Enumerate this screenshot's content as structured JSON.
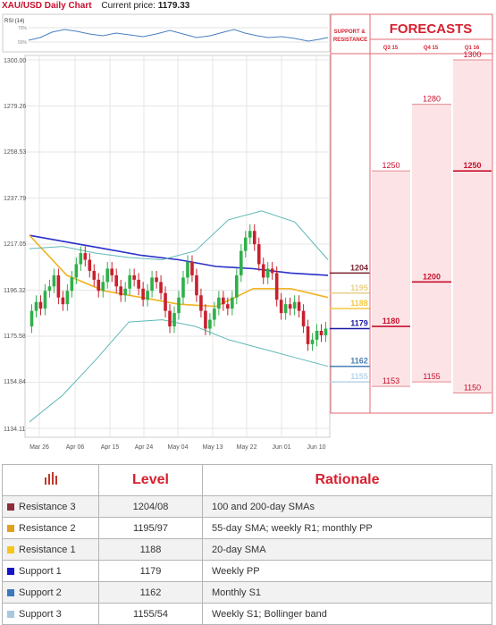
{
  "header": {
    "title": "XAU/USD Daily Chart",
    "price_label": "Current price:",
    "price": "1179.33"
  },
  "rsi": {
    "label": "RSI (14)",
    "levels": [
      "70%",
      "50%"
    ]
  },
  "chart_data": {
    "type": "candlestick",
    "title": "XAU/USD Daily Chart",
    "current_price": 1179.33,
    "y_ticks": [
      "1300.00",
      "1279.26",
      "1258.53",
      "1237.79",
      "1217.05",
      "1196.32",
      "1175.58",
      "1154.84",
      "1134.11"
    ],
    "y_range": [
      1134.11,
      1300.0
    ],
    "x_ticks": [
      "Mar 26",
      "Apr 06",
      "Apr 15",
      "Apr 24",
      "May 04",
      "May 13",
      "May 22",
      "Jun 01",
      "Jun 10"
    ],
    "grid": true,
    "candles": [
      [
        1180,
        1187
      ],
      [
        1187,
        1191
      ],
      [
        1191,
        1188
      ],
      [
        1188,
        1196
      ],
      [
        1196,
        1198
      ],
      [
        1198,
        1203
      ],
      [
        1203,
        1193
      ],
      [
        1193,
        1190
      ],
      [
        1190,
        1196
      ],
      [
        1196,
        1202
      ],
      [
        1202,
        1208
      ],
      [
        1208,
        1213
      ],
      [
        1213,
        1210
      ],
      [
        1210,
        1205
      ],
      [
        1205,
        1201
      ],
      [
        1201,
        1196
      ],
      [
        1196,
        1200
      ],
      [
        1200,
        1206
      ],
      [
        1206,
        1203
      ],
      [
        1203,
        1198
      ],
      [
        1198,
        1194
      ],
      [
        1194,
        1197
      ],
      [
        1197,
        1203
      ],
      [
        1203,
        1201
      ],
      [
        1201,
        1197
      ],
      [
        1197,
        1192
      ],
      [
        1192,
        1196
      ],
      [
        1196,
        1202
      ],
      [
        1202,
        1200
      ],
      [
        1200,
        1195
      ],
      [
        1195,
        1187
      ],
      [
        1187,
        1180
      ],
      [
        1180,
        1186
      ],
      [
        1186,
        1193
      ],
      [
        1193,
        1202
      ],
      [
        1202,
        1209
      ],
      [
        1209,
        1203
      ],
      [
        1203,
        1194
      ],
      [
        1194,
        1187
      ],
      [
        1187,
        1179
      ],
      [
        1179,
        1183
      ],
      [
        1183,
        1188
      ],
      [
        1188,
        1193
      ],
      [
        1193,
        1190
      ],
      [
        1190,
        1188
      ],
      [
        1188,
        1193
      ],
      [
        1193,
        1203
      ],
      [
        1203,
        1214
      ],
      [
        1214,
        1220
      ],
      [
        1220,
        1223
      ],
      [
        1223,
        1217
      ],
      [
        1217,
        1208
      ],
      [
        1208,
        1202
      ],
      [
        1202,
        1206
      ],
      [
        1206,
        1204
      ],
      [
        1204,
        1192
      ],
      [
        1192,
        1186
      ],
      [
        1186,
        1190
      ],
      [
        1190,
        1188
      ],
      [
        1188,
        1191
      ],
      [
        1191,
        1187
      ],
      [
        1187,
        1180
      ],
      [
        1180,
        1172
      ],
      [
        1172,
        1174
      ],
      [
        1174,
        1178
      ],
      [
        1178,
        1176
      ],
      [
        1176,
        1179
      ]
    ],
    "series": [
      {
        "name": "200-day SMA",
        "color": "#2a2fc7",
        "values": [
          1221,
          1218,
          1215,
          1212,
          1210,
          1207,
          1206,
          1204,
          1203
        ]
      },
      {
        "name": "55-day SMA",
        "color": "#f0b323",
        "values": [
          1221,
          1203,
          1196,
          1193,
          1190,
          1189,
          1197,
          1197,
          1193
        ]
      },
      {
        "name": "Bollinger upper",
        "color": "#5fb8b8",
        "values": [
          1215,
          1216,
          1213,
          1211,
          1210,
          1214,
          1228,
          1232,
          1227,
          1210
        ]
      },
      {
        "name": "Bollinger lower",
        "color": "#5fb8b8",
        "values": [
          1137,
          1149,
          1165,
          1182,
          1183,
          1180,
          1174,
          1170,
          1166,
          1162
        ]
      }
    ]
  },
  "levels_panel": {
    "header": "SUPPORT & RESISTANCE",
    "items": [
      {
        "label": "1204",
        "value": 1204,
        "color": "#7b1f2e"
      },
      {
        "label": "1195",
        "value": 1195,
        "color": "#e8d08a"
      },
      {
        "label": "1188",
        "value": 1188,
        "color": "#f5c842"
      },
      {
        "label": "1179",
        "value": 1179,
        "color": "#1a1aa6"
      },
      {
        "label": "1162",
        "value": 1162,
        "color": "#4a7fb5"
      },
      {
        "label": "1155",
        "value": 1155,
        "color": "#b8d5e8"
      }
    ]
  },
  "forecasts": {
    "title": "FORECASTS",
    "columns": [
      {
        "label": "Q3 15",
        "high": 1250,
        "mid": 1180,
        "low": 1153,
        "high_label": "1250",
        "mid_label": "1180",
        "low_label": "1153"
      },
      {
        "label": "Q4 15",
        "high": 1280,
        "mid": 1200,
        "low": 1155,
        "high_label": "1280",
        "mid_label": "1200",
        "low_label": "1155"
      },
      {
        "label": "Q1 16",
        "high": 1300,
        "mid": 1250,
        "low": 1150,
        "high_label": "1300",
        "mid_label": "1250",
        "low_label": "1150"
      }
    ]
  },
  "table": {
    "header_level": "Level",
    "header_rationale": "Rationale",
    "rows": [
      {
        "name": "Resistance 3",
        "value": "1204/08",
        "rationale": "100 and 200-day SMAs",
        "color": "#8b2e3a"
      },
      {
        "name": "Resistance 2",
        "value": "1195/97",
        "rationale": "55-day SMA; weekly R1; monthly PP",
        "color": "#e0a020"
      },
      {
        "name": "Resistance 1",
        "value": "1188",
        "rationale": "20-day SMA",
        "color": "#f5c518"
      },
      {
        "name": "Support 1",
        "value": "1179",
        "rationale": "Weekly PP",
        "color": "#1515c8"
      },
      {
        "name": "Support 2",
        "value": "1162",
        "rationale": "Monthly S1",
        "color": "#3a78c0"
      },
      {
        "name": "Support 3",
        "value": "1155/54",
        "rationale": "Weekly S1; Bollinger band",
        "color": "#a8c8e0"
      }
    ]
  }
}
